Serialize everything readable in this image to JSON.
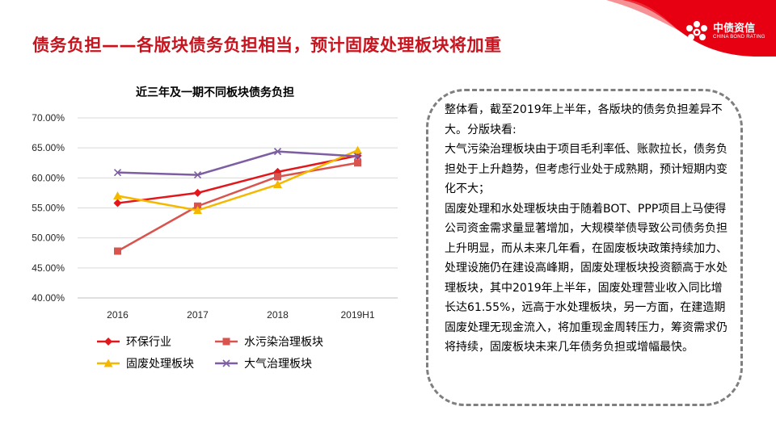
{
  "slide": {
    "title": "债务负担——各版块债务负担相当，预计固废处理板块将加重"
  },
  "logo": {
    "name_cn": "中债资信",
    "name_en": "CHINA BOND RATING",
    "accent_color": "#e60012"
  },
  "chart_data": {
    "type": "line",
    "title": "近三年及一期不同板块债务负担",
    "categories": [
      "2016",
      "2017",
      "2018",
      "2019H1"
    ],
    "ylim": [
      40,
      70
    ],
    "y_ticks": [
      "40.00%",
      "45.00%",
      "50.00%",
      "55.00%",
      "60.00%",
      "65.00%",
      "70.00%"
    ],
    "grid": true,
    "legend_position": "bottom",
    "series": [
      {
        "name": "环保行业",
        "values": [
          55.8,
          57.5,
          61.0,
          63.7
        ],
        "color": "#e3161c",
        "marker": "diamond"
      },
      {
        "name": "水污染治理板块",
        "values": [
          47.8,
          55.3,
          60.2,
          62.5
        ],
        "color": "#d9534f",
        "marker": "square"
      },
      {
        "name": "固废处理板块",
        "values": [
          57.0,
          54.6,
          58.9,
          64.6
        ],
        "color": "#f5b800",
        "marker": "triangle"
      },
      {
        "name": "大气治理板块",
        "values": [
          60.9,
          60.5,
          64.4,
          63.6
        ],
        "color": "#7e5ea2",
        "marker": "x"
      }
    ]
  },
  "note": {
    "text": "整体看，截至2019年上半年，各版块的债务负担差异不大。分版块看:\n大气污染治理板块由于项目毛利率低、账款拉长，债务负担处于上升趋势，但考虑行业处于成熟期，预计短期内变化不大；\n固废处理和水处理板块由于随着BOT、PPP项目上马使得公司资金需求量显著增加，大规模举债导致公司债务负担上升明显，而从未来几年看，在固废板块政策持续加力、处理设施仍在建设高峰期，固废处理板块投资额高于水处理板块，其中2019年上半年，固废处理营业收入同比增长达61.55%，远高于水处理板块，另一方面，在建造期固废处理无现金流入，将加重现金周转压力，筹资需求仍将持续，固废板块未来几年债务负担或增幅最快。"
  }
}
